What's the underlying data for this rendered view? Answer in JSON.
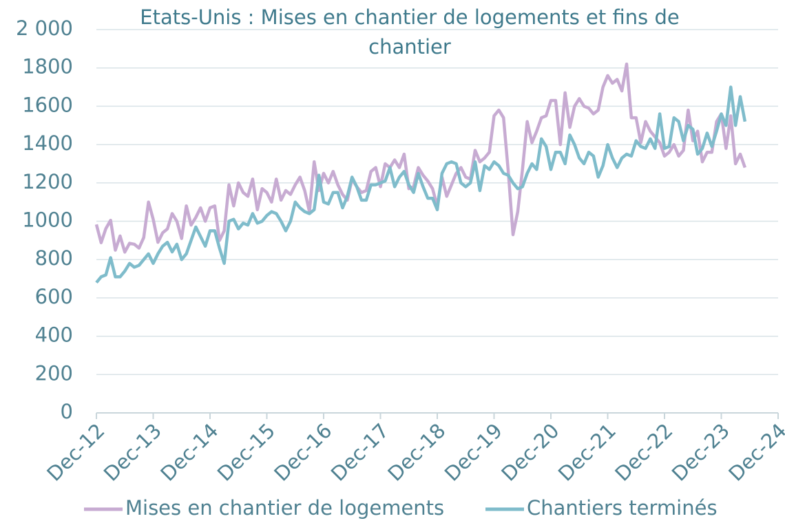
{
  "chart_data": {
    "type": "line",
    "title": "Etats-Unis : Mises en chantier de logements et fins de chantier",
    "categories": [
      "Dec-12",
      null,
      null,
      null,
      null,
      null,
      null,
      null,
      null,
      null,
      null,
      null,
      "Dec-13",
      null,
      null,
      null,
      null,
      null,
      null,
      null,
      null,
      null,
      null,
      null,
      "Dec-14",
      null,
      null,
      null,
      null,
      null,
      null,
      null,
      null,
      null,
      null,
      null,
      "Dec-15",
      null,
      null,
      null,
      null,
      null,
      null,
      null,
      null,
      null,
      null,
      null,
      "Dec-16",
      null,
      null,
      null,
      null,
      null,
      null,
      null,
      null,
      null,
      null,
      null,
      "Dec-17",
      null,
      null,
      null,
      null,
      null,
      null,
      null,
      null,
      null,
      null,
      null,
      "Dec-18",
      null,
      null,
      null,
      null,
      null,
      null,
      null,
      null,
      null,
      null,
      null,
      "Dec-19",
      null,
      null,
      null,
      null,
      null,
      null,
      null,
      null,
      null,
      null,
      null,
      "Dec-20",
      null,
      null,
      null,
      null,
      null,
      null,
      null,
      null,
      null,
      null,
      null,
      "Dec-21",
      null,
      null,
      null,
      null,
      null,
      null,
      null,
      null,
      null,
      null,
      null,
      "Dec-22",
      null,
      null,
      null,
      null,
      null,
      null,
      null,
      null,
      null,
      null,
      null,
      "Dec-23",
      null,
      null,
      null,
      null,
      null,
      null,
      null,
      null,
      null,
      null,
      null,
      "Dec-24"
    ],
    "series": [
      {
        "name": "Mises en chantier de logements",
        "color": "#c7abd2",
        "values": [
          983,
          888,
          962,
          1005,
          849,
          923,
          839,
          885,
          880,
          860,
          915,
          1100,
          1010,
          890,
          940,
          960,
          1040,
          1000,
          910,
          1080,
          980,
          1020,
          1070,
          1000,
          1070,
          1080,
          900,
          950,
          1190,
          1080,
          1200,
          1150,
          1130,
          1220,
          1060,
          1170,
          1150,
          1100,
          1220,
          1110,
          1160,
          1140,
          1190,
          1230,
          1160,
          1050,
          1310,
          1160,
          1250,
          1200,
          1260,
          1190,
          1140,
          1110,
          1220,
          1180,
          1150,
          1160,
          1260,
          1280,
          1180,
          1300,
          1280,
          1320,
          1280,
          1350,
          1170,
          1180,
          1280,
          1240,
          1210,
          1170,
          1080,
          1230,
          1130,
          1190,
          1250,
          1280,
          1230,
          1220,
          1370,
          1310,
          1330,
          1360,
          1550,
          1580,
          1540,
          1260,
          930,
          1050,
          1270,
          1520,
          1410,
          1470,
          1540,
          1550,
          1630,
          1630,
          1400,
          1670,
          1490,
          1600,
          1640,
          1600,
          1590,
          1560,
          1580,
          1700,
          1760,
          1720,
          1740,
          1680,
          1820,
          1540,
          1540,
          1410,
          1520,
          1470,
          1440,
          1410,
          1340,
          1360,
          1400,
          1340,
          1370,
          1580,
          1420,
          1470,
          1310,
          1360,
          1360,
          1520,
          1560,
          1380,
          1550,
          1300,
          1350,
          1280,
          null,
          null,
          null,
          null,
          null,
          null,
          null
        ]
      },
      {
        "name": "Chantiers terminés",
        "color": "#7fbccb",
        "values": [
          680,
          710,
          720,
          810,
          710,
          710,
          740,
          780,
          760,
          770,
          800,
          830,
          780,
          830,
          870,
          890,
          840,
          880,
          800,
          830,
          900,
          970,
          920,
          870,
          950,
          950,
          860,
          780,
          1000,
          1010,
          960,
          990,
          980,
          1040,
          990,
          1000,
          1030,
          1050,
          1040,
          1000,
          950,
          1000,
          1100,
          1070,
          1050,
          1040,
          1060,
          1240,
          1100,
          1090,
          1150,
          1150,
          1070,
          1130,
          1230,
          1180,
          1110,
          1110,
          1190,
          1190,
          1200,
          1210,
          1280,
          1180,
          1230,
          1260,
          1190,
          1150,
          1250,
          1180,
          1120,
          1120,
          1060,
          1250,
          1300,
          1310,
          1300,
          1200,
          1180,
          1200,
          1310,
          1160,
          1290,
          1270,
          1310,
          1290,
          1250,
          1240,
          1200,
          1170,
          1180,
          1250,
          1300,
          1270,
          1430,
          1390,
          1270,
          1360,
          1360,
          1300,
          1450,
          1400,
          1330,
          1300,
          1360,
          1340,
          1230,
          1290,
          1400,
          1330,
          1280,
          1330,
          1350,
          1340,
          1420,
          1390,
          1380,
          1430,
          1380,
          1560,
          1380,
          1390,
          1540,
          1520,
          1420,
          1500,
          1480,
          1350,
          1380,
          1460,
          1390,
          1470,
          1560,
          1500,
          1700,
          1500,
          1650,
          1520,
          null,
          null,
          null,
          null,
          null,
          null,
          null
        ]
      }
    ],
    "ylim": [
      0,
      2000
    ],
    "yticks": [
      0,
      200,
      400,
      600,
      800,
      1000,
      1200,
      1400,
      1600,
      1800,
      {
        "value": 2000,
        "label": "2 000"
      }
    ],
    "grid": true
  }
}
